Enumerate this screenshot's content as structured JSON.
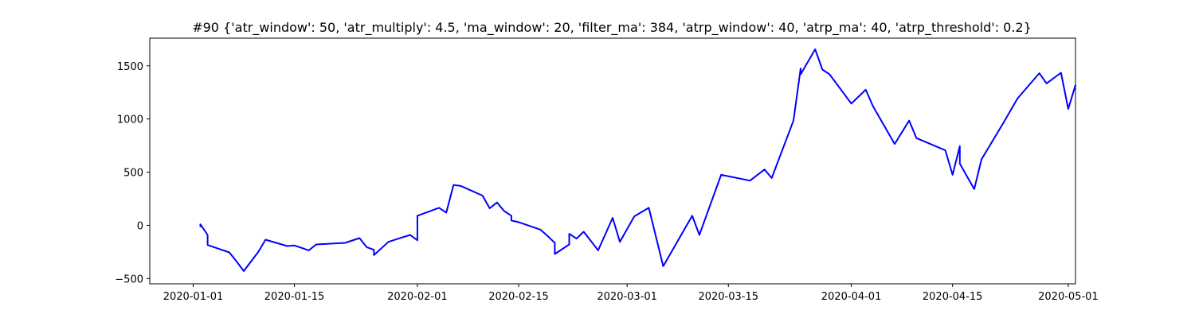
{
  "chart_data": {
    "type": "line",
    "title": "#90 {'atr_window': 50, 'atr_multiply': 4.5, 'ma_window': 20, 'filter_ma': 384, 'atrp_window': 40, 'atrp_ma': 40, 'atrp_threshold': 0.2}",
    "xlabel": "",
    "ylabel": "",
    "x_axis_type": "date",
    "xlim": [
      "2019-12-26",
      "2020-05-02"
    ],
    "ylim": [
      -550,
      1760
    ],
    "grid": false,
    "line_color": "#0000ff",
    "x_ticks": [
      {
        "value": "2020-01-01",
        "label": "2020-01-01"
      },
      {
        "value": "2020-01-15",
        "label": "2020-01-15"
      },
      {
        "value": "2020-02-01",
        "label": "2020-02-01"
      },
      {
        "value": "2020-02-15",
        "label": "2020-02-15"
      },
      {
        "value": "2020-03-01",
        "label": "2020-03-01"
      },
      {
        "value": "2020-03-15",
        "label": "2020-03-15"
      },
      {
        "value": "2020-04-01",
        "label": "2020-04-01"
      },
      {
        "value": "2020-04-15",
        "label": "2020-04-15"
      },
      {
        "value": "2020-05-01",
        "label": "2020-05-01"
      }
    ],
    "y_ticks": [
      {
        "value": -500,
        "label": "−500"
      },
      {
        "value": 0,
        "label": "0"
      },
      {
        "value": 500,
        "label": "500"
      },
      {
        "value": 1000,
        "label": "1000"
      },
      {
        "value": 1500,
        "label": "1500"
      }
    ],
    "series": [
      {
        "points": [
          [
            "2020-01-02",
            0
          ],
          [
            "2020-01-02",
            -10
          ],
          [
            "2020-01-02",
            10
          ],
          [
            "2020-01-03",
            -90
          ],
          [
            "2020-01-03",
            -185
          ],
          [
            "2020-01-06",
            -255
          ],
          [
            "2020-01-07",
            -340
          ],
          [
            "2020-01-08",
            -430
          ],
          [
            "2020-01-10",
            -250
          ],
          [
            "2020-01-11",
            -135
          ],
          [
            "2020-01-14",
            -195
          ],
          [
            "2020-01-15",
            -190
          ],
          [
            "2020-01-17",
            -235
          ],
          [
            "2020-01-18",
            -180
          ],
          [
            "2020-01-22",
            -165
          ],
          [
            "2020-01-24",
            -120
          ],
          [
            "2020-01-25",
            -205
          ],
          [
            "2020-01-26",
            -230
          ],
          [
            "2020-01-26",
            -280
          ],
          [
            "2020-01-28",
            -155
          ],
          [
            "2020-01-31",
            -90
          ],
          [
            "2020-02-01",
            -140
          ],
          [
            "2020-02-01",
            -60
          ],
          [
            "2020-02-01",
            90
          ],
          [
            "2020-02-04",
            165
          ],
          [
            "2020-02-05",
            120
          ],
          [
            "2020-02-06",
            380
          ],
          [
            "2020-02-07",
            370
          ],
          [
            "2020-02-10",
            280
          ],
          [
            "2020-02-11",
            160
          ],
          [
            "2020-02-12",
            215
          ],
          [
            "2020-02-13",
            135
          ],
          [
            "2020-02-14",
            90
          ],
          [
            "2020-02-14",
            45
          ],
          [
            "2020-02-15",
            30
          ],
          [
            "2020-02-18",
            -40
          ],
          [
            "2020-02-19",
            -100
          ],
          [
            "2020-02-20",
            -165
          ],
          [
            "2020-02-20",
            -270
          ],
          [
            "2020-02-22",
            -180
          ],
          [
            "2020-02-22",
            -80
          ],
          [
            "2020-02-23",
            -125
          ],
          [
            "2020-02-24",
            -60
          ],
          [
            "2020-02-26",
            -235
          ],
          [
            "2020-02-28",
            70
          ],
          [
            "2020-02-29",
            -155
          ],
          [
            "2020-03-02",
            85
          ],
          [
            "2020-03-04",
            165
          ],
          [
            "2020-03-06",
            -385
          ],
          [
            "2020-03-10",
            90
          ],
          [
            "2020-03-11",
            -90
          ],
          [
            "2020-03-14",
            475
          ],
          [
            "2020-03-18",
            420
          ],
          [
            "2020-03-20",
            525
          ],
          [
            "2020-03-21",
            445
          ],
          [
            "2020-03-24",
            985
          ],
          [
            "2020-03-25",
            1475
          ],
          [
            "2020-03-25",
            1420
          ],
          [
            "2020-03-27",
            1655
          ],
          [
            "2020-03-28",
            1465
          ],
          [
            "2020-03-29",
            1420
          ],
          [
            "2020-04-01",
            1145
          ],
          [
            "2020-04-03",
            1275
          ],
          [
            "2020-04-04",
            1120
          ],
          [
            "2020-04-07",
            765
          ],
          [
            "2020-04-09",
            985
          ],
          [
            "2020-04-10",
            820
          ],
          [
            "2020-04-14",
            705
          ],
          [
            "2020-04-15",
            475
          ],
          [
            "2020-04-16",
            745
          ],
          [
            "2020-04-16",
            580
          ],
          [
            "2020-04-17",
            460
          ],
          [
            "2020-04-18",
            340
          ],
          [
            "2020-04-19",
            620
          ],
          [
            "2020-04-22",
            960
          ],
          [
            "2020-04-24",
            1195
          ],
          [
            "2020-04-27",
            1430
          ],
          [
            "2020-04-28",
            1335
          ],
          [
            "2020-04-30",
            1435
          ],
          [
            "2020-05-01",
            1095
          ],
          [
            "2020-05-02",
            1320
          ]
        ]
      }
    ]
  }
}
